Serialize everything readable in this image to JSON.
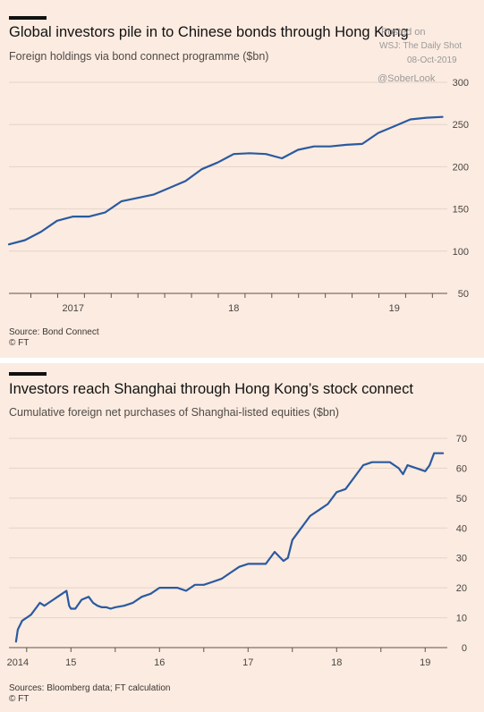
{
  "watermark": {
    "posted": "Posted on",
    "source": "WSJ: The Daily Shot",
    "date": "08-Oct-2019",
    "handle": "@SoberLook"
  },
  "colors": {
    "line": "#2a5aa0",
    "grid": "#e3d3c8",
    "axis": "#5c5550",
    "background": "#fcebe0"
  },
  "charts": [
    {
      "title": "Global investors pile in to Chinese bonds through Hong Kong",
      "subtitle": "Foreign holdings via bond connect programme ($bn)",
      "source_line1": "Source: Bond Connect",
      "source_line2": "© FT"
    },
    {
      "title": "Investors reach Shanghai through Hong Kong’s stock connect",
      "subtitle": "Cumulative foreign net purchases of Shanghai-listed equities ($bn)",
      "source_line1": "Sources: Bloomberg data; FT calculation",
      "source_line2": "© FT"
    }
  ],
  "chart_data": [
    {
      "type": "line",
      "title": "Global investors pile in to Chinese bonds through Hong Kong",
      "subtitle": "Foreign holdings via bond connect programme ($bn)",
      "ylabel": "",
      "xlabel": "",
      "ylim": [
        50,
        300
      ],
      "yticks": [
        "50",
        "100",
        "150",
        "200",
        "250",
        "300"
      ],
      "xlim": [
        2016.6,
        2019.33
      ],
      "xticks": [
        {
          "label": "2017",
          "value": 2017.0
        },
        {
          "label": "18",
          "value": 2018.0
        },
        {
          "label": "19",
          "value": 2019.0
        }
      ],
      "grid": true,
      "series": [
        {
          "x": [
            2016.6,
            2016.7,
            2016.8,
            2016.9,
            2017.0,
            2017.1,
            2017.2,
            2017.3,
            2017.4,
            2017.5,
            2017.6,
            2017.7,
            2017.8,
            2017.9,
            2018.0,
            2018.1,
            2018.2,
            2018.3,
            2018.4,
            2018.5,
            2018.6,
            2018.7,
            2018.8,
            2018.9,
            2019.0,
            2019.1,
            2019.2,
            2019.3
          ],
          "y": [
            108,
            113,
            123,
            136,
            141,
            141,
            146,
            159,
            163,
            167,
            175,
            183,
            197,
            205,
            215,
            216,
            215,
            210,
            220,
            224,
            224,
            226,
            227,
            240,
            248,
            256,
            258,
            259
          ]
        }
      ]
    },
    {
      "type": "line",
      "title": "Investors reach Shanghai through Hong Kong’s stock connect",
      "subtitle": "Cumulative foreign net purchases of Shanghai-listed equities ($bn)",
      "ylabel": "",
      "xlabel": "",
      "ylim": [
        0,
        70
      ],
      "yticks": [
        "0",
        "10",
        "20",
        "30",
        "40",
        "50",
        "60",
        "70"
      ],
      "xlim": [
        2014.8,
        2019.75
      ],
      "xticks": [
        {
          "label": "2014",
          "value": 2014.9
        },
        {
          "label": "15",
          "value": 2015.5
        },
        {
          "label": "16",
          "value": 2016.5
        },
        {
          "label": "17",
          "value": 2017.5
        },
        {
          "label": "18",
          "value": 2018.5
        },
        {
          "label": "19",
          "value": 2019.5
        }
      ],
      "grid": true,
      "series": [
        {
          "x": [
            2014.88,
            2014.9,
            2014.95,
            2015.0,
            2015.05,
            2015.1,
            2015.15,
            2015.2,
            2015.25,
            2015.3,
            2015.35,
            2015.4,
            2015.45,
            2015.48,
            2015.5,
            2015.55,
            2015.62,
            2015.7,
            2015.75,
            2015.8,
            2015.85,
            2015.9,
            2015.95,
            2016.0,
            2016.1,
            2016.2,
            2016.3,
            2016.4,
            2016.5,
            2016.6,
            2016.7,
            2016.8,
            2016.9,
            2017.0,
            2017.1,
            2017.2,
            2017.3,
            2017.4,
            2017.5,
            2017.6,
            2017.7,
            2017.8,
            2017.9,
            2017.95,
            2018.0,
            2018.1,
            2018.2,
            2018.3,
            2018.4,
            2018.5,
            2018.6,
            2018.7,
            2018.8,
            2018.9,
            2019.0,
            2019.1,
            2019.2,
            2019.25,
            2019.3,
            2019.4,
            2019.5,
            2019.55,
            2019.6,
            2019.65,
            2019.7
          ],
          "y": [
            2,
            6,
            9,
            10,
            11,
            13,
            15,
            14,
            15,
            16,
            17,
            18,
            19,
            14,
            13,
            13,
            16,
            17,
            15,
            14,
            13.5,
            13.5,
            13,
            13.5,
            14,
            15,
            17,
            18,
            20,
            20,
            20,
            19,
            21,
            21,
            22,
            23,
            25,
            27,
            28,
            28,
            28,
            32,
            29,
            30,
            36,
            40,
            44,
            46,
            48,
            52,
            53,
            57,
            61,
            62,
            62,
            62,
            60,
            58,
            61,
            60,
            59,
            61,
            65,
            65,
            65
          ]
        }
      ]
    }
  ]
}
